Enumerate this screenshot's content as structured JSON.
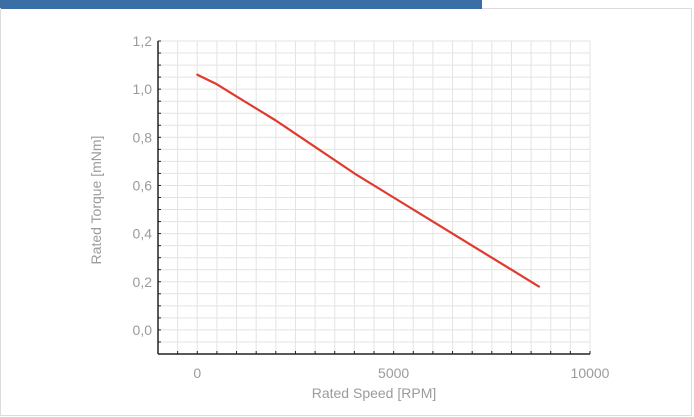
{
  "chart_data": {
    "type": "line",
    "title": "",
    "xlabel": "Rated Speed [RPM]",
    "ylabel": "Rated Torque [mNm]",
    "xlim": [
      -1000,
      10000
    ],
    "ylim": [
      -0.1,
      1.2
    ],
    "x_ticks": [
      {
        "value": 0,
        "label": "0"
      },
      {
        "value": 5000,
        "label": "5000"
      },
      {
        "value": 10000,
        "label": "10000"
      }
    ],
    "y_ticks": [
      {
        "value": 0.0,
        "label": "0,0"
      },
      {
        "value": 0.2,
        "label": "0,2"
      },
      {
        "value": 0.4,
        "label": "0,4"
      },
      {
        "value": 0.6,
        "label": "0,6"
      },
      {
        "value": 0.8,
        "label": "0,8"
      },
      {
        "value": 1.0,
        "label": "1,0"
      },
      {
        "value": 1.2,
        "label": "1,2"
      }
    ],
    "grid": true,
    "series": [
      {
        "color": "#e03a2e",
        "x": [
          0,
          500,
          1000,
          2000,
          3000,
          4000,
          5000,
          6000,
          7000,
          8000,
          8700
        ],
        "y": [
          1.06,
          1.02,
          0.97,
          0.87,
          0.76,
          0.65,
          0.55,
          0.45,
          0.35,
          0.25,
          0.18
        ]
      }
    ]
  }
}
